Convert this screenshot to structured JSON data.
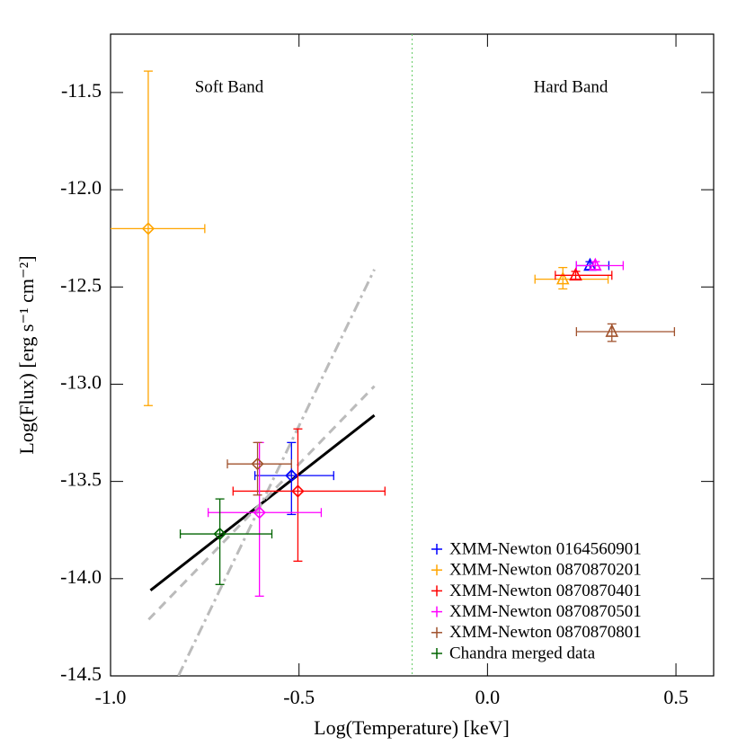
{
  "chart_data": {
    "type": "scatter",
    "xlabel": "Log(Temperature) [keV]",
    "ylabel": "Log(Flux) [erg s⁻¹ cm⁻²]",
    "annotations": [
      "Soft Band",
      "Hard Band"
    ],
    "xlim": [
      -1.0,
      0.6
    ],
    "ylim": [
      -14.5,
      -11.2
    ],
    "xticks": [
      {
        "value": -1.0,
        "label": "-1.0"
      },
      -0.5,
      {
        "value": 0.0,
        "label": "0.0"
      },
      0.5
    ],
    "yticks": [
      -11.5,
      {
        "value": -12.0,
        "label": "-12.0"
      },
      -12.5,
      {
        "value": -13.0,
        "label": "-13.0"
      },
      -13.5,
      {
        "value": -14.0,
        "label": "-14.0"
      },
      -14.5
    ],
    "legend": "lower right",
    "series": [
      {
        "name": "XMM-Newton 0164560901",
        "color": "#0000ff",
        "markers": [
          "diamond",
          "triangle"
        ],
        "x": [
          -0.52,
          0.272
        ],
        "y": [
          -13.47,
          -12.39
        ],
        "x_low": [
          -0.617,
          0.236
        ],
        "x_high": [
          -0.408,
          0.322
        ],
        "y_low": [
          -13.67,
          -12.41
        ],
        "y_high": [
          -13.3,
          -12.37
        ]
      },
      {
        "name": "XMM-Newton 0870870201",
        "color": "#ffa500",
        "markers": [
          "diamond",
          "triangle"
        ],
        "x": [
          -0.9,
          0.2
        ],
        "y": [
          -12.2,
          -12.46
        ],
        "x_low": [
          -1.05,
          0.126
        ],
        "x_high": [
          -0.75,
          0.32
        ],
        "y_low": [
          -13.11,
          -12.51
        ],
        "y_high": [
          -11.39,
          -12.4
        ]
      },
      {
        "name": "XMM-Newton 0870870401",
        "color": "#ff0000",
        "markers": [
          "diamond",
          "triangle"
        ],
        "x": [
          -0.503,
          0.234
        ],
        "y": [
          -13.55,
          -12.44
        ],
        "x_low": [
          -0.675,
          0.18
        ],
        "x_high": [
          -0.272,
          0.33
        ],
        "y_low": [
          -13.91,
          -12.46
        ],
        "y_high": [
          -13.23,
          -12.42
        ]
      },
      {
        "name": "XMM-Newton 0870870501",
        "color": "#ff00ff",
        "markers": [
          "diamond",
          "triangle"
        ],
        "x": [
          -0.605,
          0.286
        ],
        "y": [
          -13.66,
          -12.39
        ],
        "x_low": [
          -0.741,
          0.236
        ],
        "x_high": [
          -0.441,
          0.36
        ],
        "y_low": [
          -14.09,
          -12.41
        ],
        "y_high": [
          -13.3,
          -12.37
        ]
      },
      {
        "name": "XMM-Newton 0870870801",
        "color": "#a0522d",
        "markers": [
          "diamond",
          "triangle"
        ],
        "x": [
          -0.61,
          0.33
        ],
        "y": [
          -13.41,
          -12.73
        ],
        "x_low": [
          -0.69,
          0.236
        ],
        "x_high": [
          -0.52,
          0.496
        ],
        "y_low": [
          -13.57,
          -12.78
        ],
        "y_high": [
          -13.3,
          -12.69
        ]
      },
      {
        "name": "Chandra merged data",
        "color": "#006400",
        "markers": [
          "diamond"
        ],
        "x": [
          -0.71
        ],
        "y": [
          -13.77
        ],
        "x_low": [
          -0.815
        ],
        "x_high": [
          -0.572
        ],
        "y_low": [
          -14.03
        ],
        "y_high": [
          -13.59
        ]
      }
    ],
    "lines": [
      {
        "style": "solid",
        "color": "#000000",
        "x": [
          -0.894,
          -0.3
        ],
        "y": [
          -14.06,
          -13.16
        ]
      },
      {
        "style": "dashed",
        "color": "#bbbbbb",
        "x": [
          -0.899,
          -0.3
        ],
        "y": [
          -14.21,
          -13.01
        ]
      },
      {
        "style": "dashdot",
        "color": "#bbbbbb",
        "x": [
          -0.82,
          -0.3
        ],
        "y": [
          -14.5,
          -12.41
        ]
      }
    ],
    "vline": {
      "x": -0.2,
      "color": "#66cc66"
    }
  }
}
